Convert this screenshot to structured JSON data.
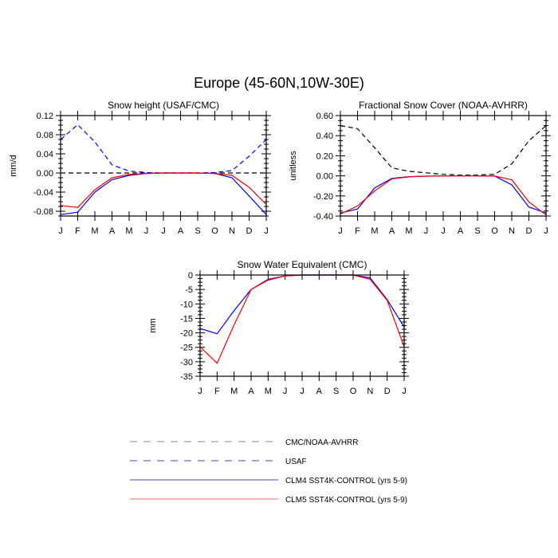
{
  "figure": {
    "title": "Europe (45-60N,10W-30E)"
  },
  "chart_data": [
    {
      "type": "line",
      "title": "Snow height (USAF/CMC)",
      "xlabel": "",
      "ylabel": "mm/d",
      "categories": [
        "J",
        "F",
        "M",
        "A",
        "M",
        "J",
        "J",
        "A",
        "S",
        "O",
        "N",
        "D",
        "J"
      ],
      "ylim": [
        -0.09,
        0.12
      ],
      "yticks": [
        0.12,
        0.08,
        0.04,
        0.0,
        -0.04,
        -0.08
      ],
      "ytick_labels": [
        "0.12",
        "0.08",
        "0.04",
        "0.00",
        "-0.04",
        "-0.08"
      ],
      "series": [
        {
          "name": "CMC/NOAA-AVHRR",
          "color": "#000000",
          "dashed": true,
          "values": [
            0,
            0,
            0,
            0,
            0,
            0,
            0,
            0,
            0,
            0,
            0,
            0,
            0
          ]
        },
        {
          "name": "USAF",
          "color": "#0000ff",
          "dashed": true,
          "values": [
            0.07,
            0.101,
            0.065,
            0.017,
            0.004,
            0.001,
            0,
            0,
            0,
            0.001,
            0.005,
            0.035,
            0.07
          ]
        },
        {
          "name": "CLM4 SST4K-CONTROL (yrs 5-9)",
          "color": "#0000ff",
          "dashed": false,
          "values": [
            -0.087,
            -0.082,
            -0.04,
            -0.014,
            -0.005,
            -0.001,
            0,
            0,
            0,
            -0.001,
            -0.01,
            -0.048,
            -0.087
          ]
        },
        {
          "name": "CLM5 SST4K-CONTROL (yrs 5-9)",
          "color": "#ff0000",
          "dashed": false,
          "values": [
            -0.068,
            -0.072,
            -0.035,
            -0.01,
            -0.003,
            -0.001,
            0,
            0,
            0,
            -0.001,
            -0.005,
            -0.03,
            -0.066
          ]
        }
      ]
    },
    {
      "type": "line",
      "title": "Fractional Snow Cover (NOAA-AVHRR)",
      "xlabel": "",
      "ylabel": "unitless",
      "categories": [
        "J",
        "F",
        "M",
        "A",
        "M",
        "J",
        "J",
        "A",
        "S",
        "O",
        "N",
        "D",
        "J"
      ],
      "ylim": [
        -0.4,
        0.6
      ],
      "yticks": [
        0.6,
        0.4,
        0.2,
        0.0,
        -0.2,
        -0.4
      ],
      "ytick_labels": [
        "0.60",
        "0.40",
        "0.20",
        "0.00",
        "-0.20",
        "-0.40"
      ],
      "series": [
        {
          "name": "CMC/NOAA-AVHRR",
          "color": "#000000",
          "dashed": true,
          "values": [
            0.5,
            0.47,
            0.28,
            0.08,
            0.045,
            0.03,
            0.015,
            0.008,
            0.008,
            0.015,
            0.12,
            0.35,
            0.5
          ]
        },
        {
          "name": "CLM4 SST4K-CONTROL (yrs 5-9)",
          "color": "#0000ff",
          "dashed": false,
          "values": [
            -0.37,
            -0.33,
            -0.12,
            -0.025,
            -0.008,
            -0.003,
            -0.001,
            -0.001,
            -0.001,
            -0.002,
            -0.09,
            -0.31,
            -0.37
          ]
        },
        {
          "name": "CLM5 SST4K-CONTROL (yrs 5-9)",
          "color": "#ff0000",
          "dashed": false,
          "values": [
            -0.38,
            -0.3,
            -0.15,
            -0.03,
            -0.01,
            -0.003,
            -0.001,
            -0.001,
            -0.001,
            -0.002,
            -0.04,
            -0.26,
            -0.39
          ]
        }
      ]
    },
    {
      "type": "line",
      "title": "Snow Water Equivalent (CMC)",
      "xlabel": "",
      "ylabel": "mm",
      "categories": [
        "J",
        "F",
        "M",
        "A",
        "M",
        "J",
        "J",
        "A",
        "S",
        "O",
        "N",
        "D",
        "J"
      ],
      "ylim": [
        -35,
        0
      ],
      "yticks": [
        0,
        -5,
        -10,
        -15,
        -20,
        -25,
        -30,
        -35
      ],
      "ytick_labels": [
        "0",
        "-5",
        "-10",
        "-15",
        "-20",
        "-25",
        "-30",
        "-35"
      ],
      "series": [
        {
          "name": "CLM4 SST4K-CONTROL (yrs 5-9)",
          "color": "#0000ff",
          "dashed": false,
          "values": [
            -18.5,
            -20.3,
            -12.3,
            -5,
            -1.5,
            -0.3,
            0,
            0,
            0,
            0,
            -1,
            -8.5,
            -18
          ]
        },
        {
          "name": "CLM5 SST4K-CONTROL (yrs 5-9)",
          "color": "#ff0000",
          "dashed": false,
          "values": [
            -24.8,
            -30.5,
            -17.2,
            -5,
            -1.8,
            -0.3,
            0,
            0,
            0,
            0,
            -1.5,
            -8.8,
            -24.8
          ]
        }
      ]
    }
  ],
  "legend": {
    "position": "bottom-center",
    "items": [
      {
        "label": "CMC/NOAA-AVHRR",
        "color": "#888888",
        "dashed": true
      },
      {
        "label": "USAF",
        "color": "#4444cc",
        "dashed": true
      },
      {
        "label": "CLM4 SST4K-CONTROL (yrs 5-9)",
        "color": "#4444cc",
        "dashed": false
      },
      {
        "label": "CLM5 SST4K-CONTROL (yrs 5-9)",
        "color": "#ff6666",
        "dashed": false
      }
    ]
  }
}
